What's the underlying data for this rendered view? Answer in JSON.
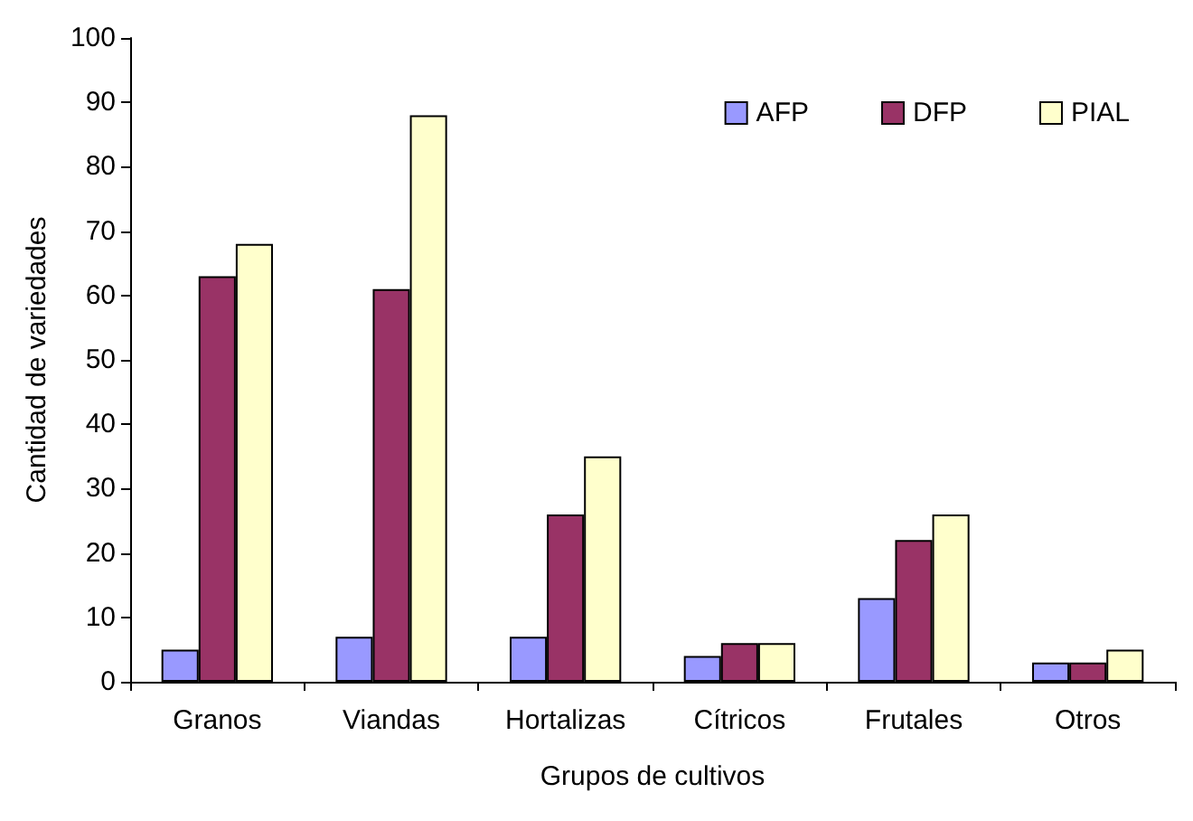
{
  "chart_data": {
    "type": "bar",
    "xlabel": "Grupos de cultivos",
    "ylabel": "Cantidad de variedades",
    "categories": [
      "Granos",
      "Viandas",
      "Hortalizas",
      "Cítricos",
      "Frutales",
      "Otros"
    ],
    "series": [
      {
        "name": "AFP",
        "color": "#9999ff",
        "values": [
          5,
          7,
          7,
          4,
          13,
          3
        ]
      },
      {
        "name": "DFP",
        "color": "#993366",
        "values": [
          63,
          61,
          26,
          6,
          22,
          3
        ]
      },
      {
        "name": "PIAL",
        "color": "#ffffcc",
        "values": [
          68,
          88,
          35,
          6,
          26,
          5
        ]
      }
    ],
    "ylim": [
      0,
      100
    ],
    "yticks": [
      0,
      10,
      20,
      30,
      40,
      50,
      60,
      70,
      80,
      90,
      100
    ],
    "grid": false,
    "legend": "top right"
  }
}
